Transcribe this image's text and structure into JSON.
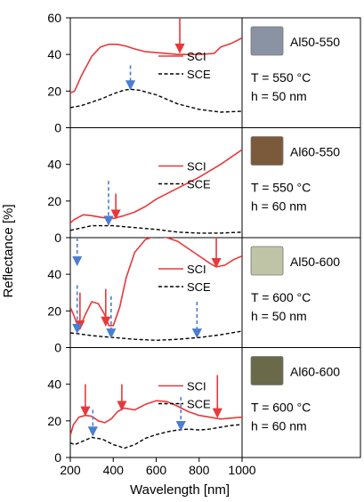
{
  "figure": {
    "ylabel": "Reflectance [%]",
    "xlabel": "Wavelength [nm]"
  },
  "chart_data": {
    "type": "line",
    "x_ticks": [
      200,
      400,
      600,
      800,
      1000
    ],
    "xlim": [
      200,
      1000
    ],
    "panels": [
      {
        "id": "p1",
        "sample": "Al50-550",
        "temp": "T = 550 °C",
        "thick": "h = 50 nm",
        "swatch": "#8a93a3",
        "ylim": [
          0,
          60
        ],
        "y_ticks": [
          0,
          20,
          40,
          60
        ],
        "legend_top": true,
        "series": [
          {
            "name": "SCI",
            "color": "#e8383a",
            "dash": false,
            "x": [
              200,
              220,
              250,
              300,
              340,
              380,
              420,
              460,
              500,
              550,
              600,
              700,
              800,
              870,
              900,
              950,
              1000
            ],
            "y": [
              19,
              20,
              28,
              39,
              44,
              45.5,
              45.5,
              44.5,
              43,
              41.5,
              41,
              40,
              40,
              40.5,
              44,
              46,
              49
            ]
          },
          {
            "name": "SCE",
            "color": "#000000",
            "dash": true,
            "x": [
              200,
              250,
              300,
              350,
              400,
              450,
              480,
              520,
              600,
              700,
              800,
              900,
              1000
            ],
            "y": [
              11,
              12,
              14,
              16,
              18.5,
              20.5,
              21,
              20.5,
              18,
              13,
              10,
              8.5,
              9
            ]
          }
        ],
        "arrows": [
          {
            "x": 710,
            "y_from": 60,
            "y_to": 41,
            "color": "#e8383a",
            "dash": false
          },
          {
            "x": 480,
            "y_from": 34,
            "y_to": 21,
            "color": "#4a7ed0",
            "dash": true
          }
        ]
      },
      {
        "id": "p2",
        "sample": "Al60-550",
        "temp": "T = 550 °C",
        "thick": "h = 60 nm",
        "swatch": "#7a5a3a",
        "ylim": [
          0,
          60
        ],
        "y_ticks": [
          0,
          20,
          40
        ],
        "legend_top": true,
        "series": [
          {
            "name": "SCI",
            "color": "#e8383a",
            "dash": false,
            "x": [
              200,
              220,
              260,
              300,
              350,
              400,
              450,
              500,
              550,
              600,
              650,
              700,
              750,
              800,
              900,
              1000
            ],
            "y": [
              8,
              10,
              12.5,
              12,
              11,
              10.5,
              12,
              14,
              17,
              21,
              24,
              27,
              30,
              33,
              40,
              48
            ]
          },
          {
            "name": "SCE",
            "color": "#000000",
            "dash": true,
            "x": [
              200,
              300,
              400,
              500,
              600,
              700,
              800,
              900,
              1000
            ],
            "y": [
              4,
              6.5,
              6.5,
              5.5,
              4.5,
              3,
              2.5,
              2.5,
              3
            ]
          }
        ],
        "arrows": [
          {
            "x": 412,
            "y_from": 24,
            "y_to": 10.5,
            "color": "#e8383a",
            "dash": false
          },
          {
            "x": 378,
            "y_from": 31,
            "y_to": 7,
            "color": "#4a7ed0",
            "dash": true
          }
        ]
      },
      {
        "id": "p3",
        "sample": "Al50-600",
        "temp": "T = 600 °C",
        "thick": "h = 50 nm",
        "swatch": "#bfc4a6",
        "ylim": [
          0,
          60
        ],
        "y_ticks": [
          0,
          20,
          40
        ],
        "legend_top": false,
        "series": [
          {
            "name": "SCI",
            "color": "#e8383a",
            "dash": false,
            "x": [
              200,
              215,
              240,
              270,
              300,
              330,
              360,
              380,
              400,
              430,
              460,
              500,
              550,
              600,
              650,
              700,
              750,
              800,
              850,
              880,
              920,
              960,
              1000
            ],
            "y": [
              22,
              18,
              10,
              18,
              25,
              24,
              18,
              12,
              12,
              22,
              38,
              52,
              59,
              61,
              60,
              58,
              54,
              50,
              46,
              44,
              45,
              48,
              50
            ]
          },
          {
            "name": "SCE",
            "color": "#000000",
            "dash": true,
            "x": [
              200,
              240,
              300,
              400,
              500,
              600,
              700,
              800,
              900,
              1000
            ],
            "y": [
              8,
              7.5,
              6.5,
              5.5,
              4.5,
              4,
              4.5,
              5.5,
              7,
              9
            ]
          }
        ],
        "arrows": [
          {
            "x": 880,
            "y_from": 60,
            "y_to": 44,
            "color": "#e8383a",
            "dash": false
          },
          {
            "x": 245,
            "y_from": 30,
            "y_to": 10,
            "color": "#e8383a",
            "dash": false
          },
          {
            "x": 365,
            "y_from": 32,
            "y_to": 12,
            "color": "#e8383a",
            "dash": false
          },
          {
            "x": 232,
            "y_from": 60,
            "y_to": 45,
            "color": "#4a7ed0",
            "dash": true
          },
          {
            "x": 232,
            "y_from": 34,
            "y_to": 8,
            "color": "#4a7ed0",
            "dash": true
          },
          {
            "x": 390,
            "y_from": 28,
            "y_to": 5.5,
            "color": "#4a7ed0",
            "dash": true
          },
          {
            "x": 790,
            "y_from": 25,
            "y_to": 5.5,
            "color": "#4a7ed0",
            "dash": true
          }
        ]
      },
      {
        "id": "p4",
        "sample": "Al60-600",
        "temp": "T = 600 °C",
        "thick": "h = 60 nm",
        "swatch": "#6a6a4a",
        "ylim": [
          0,
          60
        ],
        "y_ticks": [
          0,
          20,
          40
        ],
        "legend_top": true,
        "series": [
          {
            "name": "SCI",
            "color": "#e8383a",
            "dash": false,
            "x": [
              200,
              215,
              240,
              270,
              300,
              330,
              360,
              390,
              420,
              450,
              500,
              550,
              600,
              650,
              700,
              750,
              800,
              850,
              900,
              950,
              1000
            ],
            "y": [
              12,
              18,
              22,
              23,
              22.5,
              20,
              19,
              21,
              25,
              27,
              26,
              29,
              31,
              30.5,
              28,
              25,
              23,
              22,
              21,
              21.5,
              22
            ]
          },
          {
            "name": "SCE",
            "color": "#000000",
            "dash": true,
            "x": [
              200,
              220,
              250,
              300,
              350,
              400,
              430,
              450,
              500,
              550,
              600,
              650,
              700,
              750,
              800,
              850,
              900,
              950,
              1000
            ],
            "y": [
              8,
              7,
              8.5,
              11,
              10,
              7,
              6,
              5,
              7,
              10.5,
              12.5,
              14,
              15,
              15.5,
              15,
              15.5,
              16.5,
              17.5,
              18
            ]
          }
        ],
        "arrows": [
          {
            "x": 270,
            "y_from": 40,
            "y_to": 23,
            "color": "#e8383a",
            "dash": false
          },
          {
            "x": 440,
            "y_from": 40,
            "y_to": 26,
            "color": "#e8383a",
            "dash": false
          },
          {
            "x": 885,
            "y_from": 45,
            "y_to": 22,
            "color": "#e8383a",
            "dash": false
          },
          {
            "x": 305,
            "y_from": 26,
            "y_to": 12,
            "color": "#4a7ed0",
            "dash": true
          },
          {
            "x": 715,
            "y_from": 33,
            "y_to": 15,
            "color": "#4a7ed0",
            "dash": true
          }
        ]
      }
    ]
  }
}
